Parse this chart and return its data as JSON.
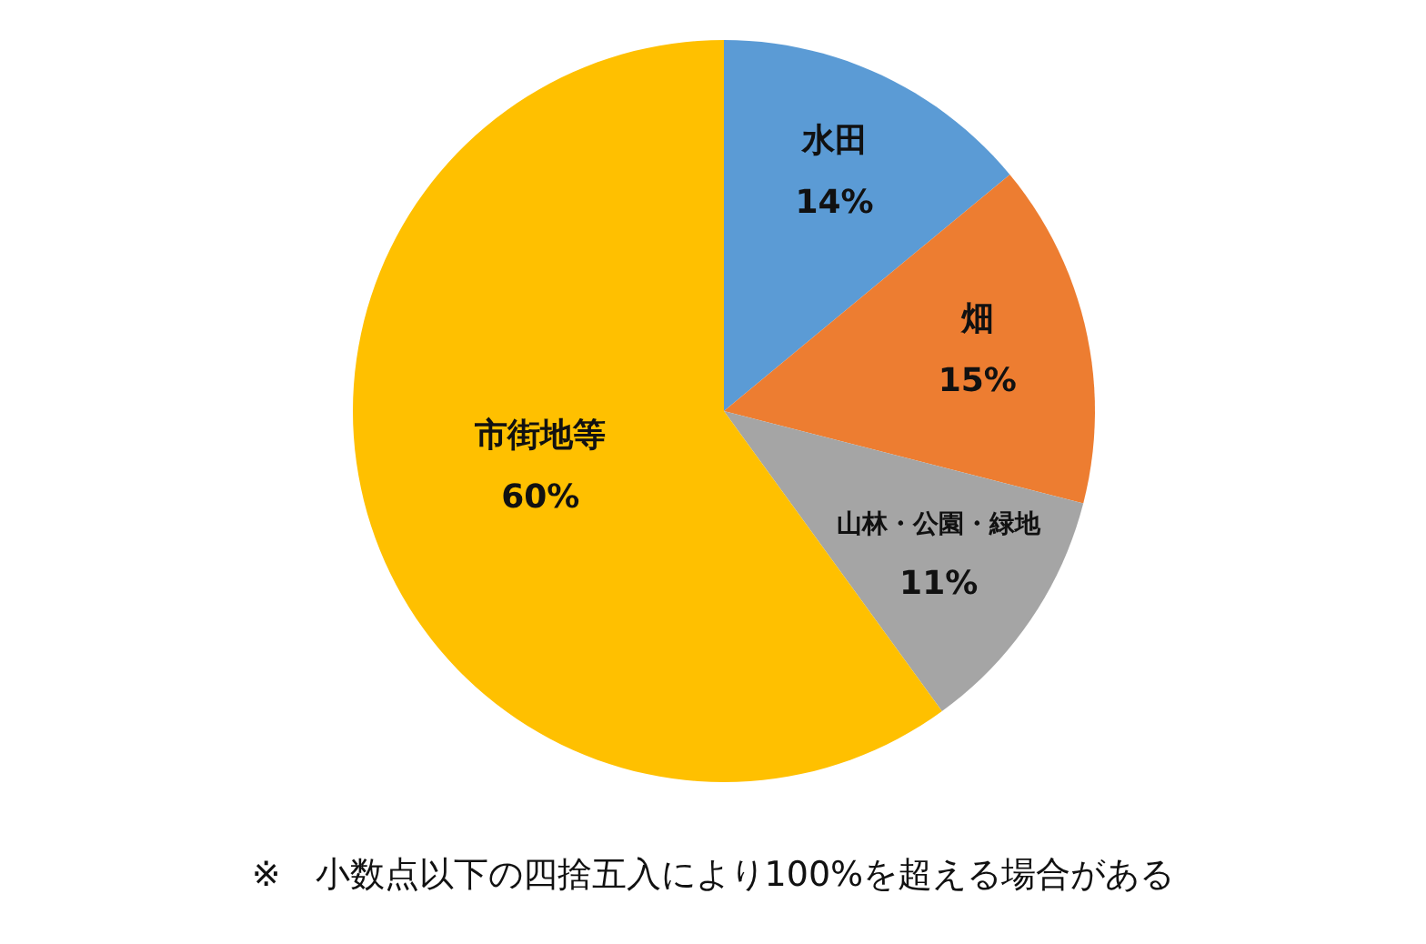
{
  "chart_data": {
    "type": "pie",
    "categories": [
      "水田",
      "畑",
      "山林・公園・緑地",
      "市街地等"
    ],
    "values": [
      14,
      15,
      11,
      60
    ],
    "colors": [
      "#5b9bd5",
      "#ed7d31",
      "#a5a5a5",
      "#ffc000"
    ],
    "value_labels": [
      "14%",
      "15%",
      "11%",
      "60%"
    ],
    "legend": false,
    "annotations": [
      "※　小数点以下の四捨五入により100%を超える場合がある"
    ]
  }
}
